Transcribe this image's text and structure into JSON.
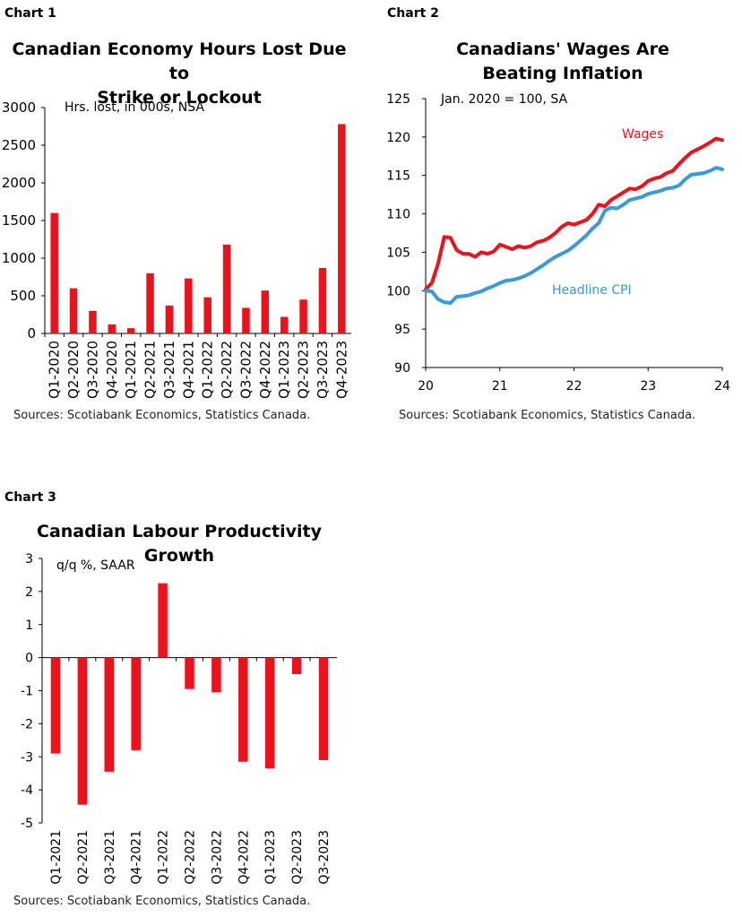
{
  "charts": [
    {
      "label": "Chart 1",
      "title_lines": [
        "Canadian Economy Hours Lost Due to",
        "Strike or Lockout"
      ],
      "source": "Sources: Scotiabank Economics, Statistics Canada.",
      "colors": {
        "bar": "#ec111a",
        "axis": "#000000"
      }
    },
    {
      "label": "Chart 2",
      "title_lines": [
        "Canadians' Wages Are",
        "Beating Inflation"
      ],
      "source": "Sources: Scotiabank Economics, Statistics Canada.",
      "colors": {
        "wages": "#ec111a",
        "cpi": "#3a9ad9",
        "axis": "#000000"
      }
    },
    {
      "label": "Chart 3",
      "title_lines": [
        "Canadian Labour Productivity Growth"
      ],
      "source": "Sources: Scotiabank Economics, Statistics Canada.",
      "colors": {
        "bar": "#ec111a",
        "axis": "#000000"
      }
    }
  ],
  "chart_data": [
    {
      "type": "bar",
      "title": "Canadian Economy Hours Lost Due to Strike or Lockout",
      "annotation": "Hrs. lost, in 000s, NSA",
      "categories": [
        "Q1-2020",
        "Q2-2020",
        "Q3-2020",
        "Q4-2020",
        "Q1-2021",
        "Q2-2021",
        "Q3-2021",
        "Q4-2021",
        "Q1-2022",
        "Q2-2022",
        "Q3-2022",
        "Q4-2022",
        "Q1-2023",
        "Q2-2023",
        "Q3-2023",
        "Q4-2023"
      ],
      "values": [
        1600,
        600,
        300,
        120,
        70,
        800,
        370,
        730,
        480,
        1180,
        340,
        570,
        220,
        450,
        870,
        2780
      ],
      "ylim": [
        0,
        3000
      ],
      "yticks": [
        0,
        500,
        1000,
        1500,
        2000,
        2500,
        3000
      ],
      "grid": false
    },
    {
      "type": "line",
      "title": "Canadians' Wages Are Beating Inflation",
      "annotation": "Jan. 2020 = 100, SA",
      "xlim": [
        20,
        24
      ],
      "xticks": [
        20,
        21,
        22,
        23,
        24
      ],
      "ylim": [
        90,
        125
      ],
      "yticks": [
        90,
        95,
        100,
        105,
        110,
        115,
        120,
        125
      ],
      "grid": false,
      "series": [
        {
          "name": "Wages",
          "x": [
            20.0,
            20.083,
            20.167,
            20.25,
            20.333,
            20.417,
            20.5,
            20.583,
            20.667,
            20.75,
            20.833,
            20.917,
            21.0,
            21.083,
            21.167,
            21.25,
            21.333,
            21.417,
            21.5,
            21.583,
            21.667,
            21.75,
            21.833,
            21.917,
            22.0,
            22.083,
            22.167,
            22.25,
            22.333,
            22.417,
            22.5,
            22.583,
            22.667,
            22.75,
            22.833,
            22.917,
            23.0,
            23.083,
            23.167,
            23.25,
            23.333,
            23.417,
            23.5,
            23.583,
            23.667,
            23.75,
            23.833,
            23.917,
            24.0
          ],
          "values": [
            100.2,
            101.0,
            103.5,
            107.0,
            106.9,
            105.3,
            104.8,
            104.8,
            104.4,
            105.0,
            104.8,
            105.1,
            106.0,
            105.7,
            105.4,
            105.8,
            105.6,
            105.8,
            106.3,
            106.5,
            106.9,
            107.5,
            108.3,
            108.8,
            108.6,
            108.9,
            109.2,
            110.0,
            111.2,
            111.0,
            111.8,
            112.3,
            112.8,
            113.3,
            113.2,
            113.6,
            114.3,
            114.6,
            114.8,
            115.3,
            115.6,
            116.5,
            117.3,
            118.0,
            118.4,
            118.8,
            119.3,
            119.8,
            119.6
          ]
        },
        {
          "name": "Headline CPI",
          "x": [
            20.0,
            20.083,
            20.167,
            20.25,
            20.333,
            20.417,
            20.5,
            20.583,
            20.667,
            20.75,
            20.833,
            20.917,
            21.0,
            21.083,
            21.167,
            21.25,
            21.333,
            21.417,
            21.5,
            21.583,
            21.667,
            21.75,
            21.833,
            21.917,
            22.0,
            22.083,
            22.167,
            22.25,
            22.333,
            22.417,
            22.5,
            22.583,
            22.667,
            22.75,
            22.833,
            22.917,
            23.0,
            23.083,
            23.167,
            23.25,
            23.333,
            23.417,
            23.5,
            23.583,
            23.667,
            23.75,
            23.833,
            23.917,
            24.0
          ],
          "values": [
            100.0,
            99.9,
            98.9,
            98.5,
            98.4,
            99.2,
            99.3,
            99.4,
            99.7,
            99.9,
            100.3,
            100.6,
            101.0,
            101.3,
            101.4,
            101.6,
            101.9,
            102.3,
            102.8,
            103.3,
            103.9,
            104.4,
            104.8,
            105.2,
            105.8,
            106.5,
            107.2,
            108.1,
            108.8,
            110.4,
            110.8,
            110.7,
            111.2,
            111.8,
            112.0,
            112.2,
            112.6,
            112.8,
            113.0,
            113.3,
            113.4,
            113.7,
            114.5,
            115.1,
            115.2,
            115.3,
            115.6,
            116.0,
            115.8
          ]
        }
      ]
    },
    {
      "type": "bar",
      "title": "Canadian Labour Productivity Growth",
      "annotation": "q/q %, SAAR",
      "categories": [
        "Q1-2021",
        "Q2-2021",
        "Q3-2021",
        "Q4-2021",
        "Q1-2022",
        "Q2-2022",
        "Q3-2022",
        "Q4-2022",
        "Q1-2023",
        "Q2-2023",
        "Q3-2023"
      ],
      "values": [
        -2.9,
        -4.45,
        -3.45,
        -2.8,
        2.25,
        -0.95,
        -1.05,
        -3.15,
        -3.35,
        -0.5,
        -3.1
      ],
      "ylim": [
        -5,
        3
      ],
      "yticks": [
        -5,
        -4,
        -3,
        -2,
        -1,
        0,
        1,
        2,
        3
      ],
      "grid": false
    }
  ]
}
